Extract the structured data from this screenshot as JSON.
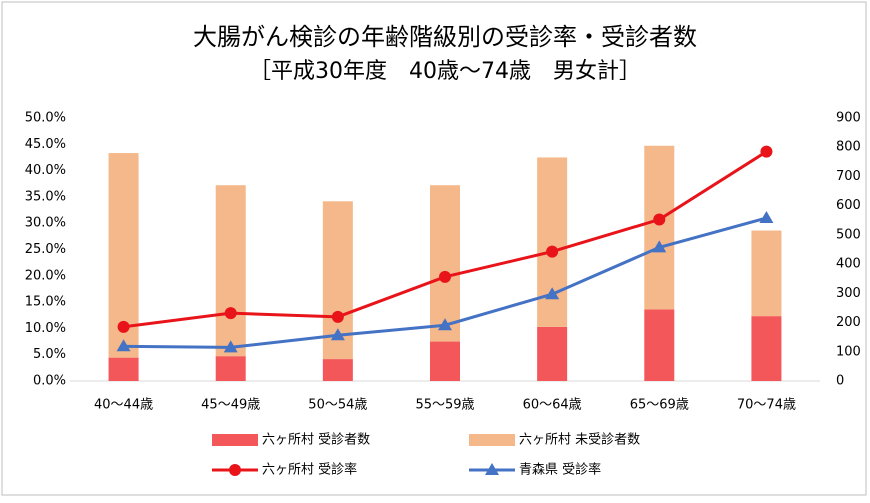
{
  "chart_data": {
    "type": "combo",
    "title": "大腸がん検診の年齢階級別の受診率・受診者数",
    "subtitle": "［平成30年度　40歳～74歳　男女計］",
    "categories": [
      "40～44歳",
      "45～49歳",
      "50～54歳",
      "55～59歳",
      "60～64歳",
      "65～69歳",
      "70～74歳"
    ],
    "series": [
      {
        "name": "六ヶ所村 受診者数",
        "type": "bar",
        "axis": "y2",
        "color": "#f4575a",
        "values": [
          80,
          85,
          75,
          135,
          185,
          245,
          222
        ]
      },
      {
        "name": "六ヶ所村 未受診者数",
        "type": "bar",
        "axis": "y2",
        "color": "#f5b88a",
        "values": [
          700,
          585,
          540,
          535,
          580,
          560,
          293
        ]
      },
      {
        "name": "六ヶ所村 受診率",
        "type": "line",
        "color": "#e8141a",
        "marker": "circle",
        "values": [
          10.3,
          12.9,
          12.2,
          19.8,
          24.6,
          30.7,
          43.6
        ]
      },
      {
        "name": "青森県 受診率",
        "type": "line",
        "color": "#4472c4",
        "marker": "triangle",
        "values": [
          6.6,
          6.4,
          8.7,
          10.6,
          16.5,
          25.4,
          31.0
        ]
      }
    ],
    "ylim": [
      0,
      50
    ],
    "yticks": [
      {
        "value": 0,
        "label": "0.0%"
      },
      {
        "value": 5,
        "label": "5.0%"
      },
      {
        "value": 10,
        "label": "10.0%"
      },
      {
        "value": 15,
        "label": "15.0%"
      },
      {
        "value": 20,
        "label": "20.0%"
      },
      {
        "value": 25,
        "label": "25.0%"
      },
      {
        "value": 30,
        "label": "30.0%"
      },
      {
        "value": 35,
        "label": "35.0%"
      },
      {
        "value": 40,
        "label": "40.0%"
      },
      {
        "value": 45,
        "label": "45.0%"
      },
      {
        "value": 50,
        "label": "50.0%"
      }
    ],
    "y2lim": [
      0,
      900
    ],
    "y2ticks": [
      0,
      100,
      200,
      300,
      400,
      500,
      600,
      700,
      800,
      900
    ],
    "grid": false,
    "legend": "bottom"
  }
}
